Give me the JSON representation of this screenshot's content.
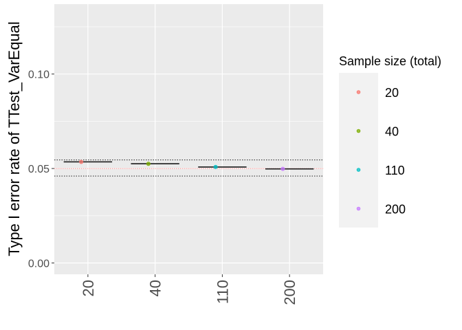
{
  "chart_data": {
    "type": "scatter",
    "title": "",
    "xlabel": "",
    "ylabel": "Type I error rate of TTest_VarEqual",
    "categories": [
      "20",
      "40",
      "110",
      "200"
    ],
    "y_ticks": [
      "0.00",
      "0.05",
      "0.10"
    ],
    "ylim": [
      -0.006,
      0.137
    ],
    "grid": true,
    "reference_lines": {
      "nominal": 0.05,
      "lower": 0.046,
      "upper": 0.0545
    },
    "series": [
      {
        "name": "20",
        "x": "20",
        "y": 0.0535,
        "color": "#F8766D"
      },
      {
        "name": "40",
        "x": "40",
        "y": 0.0525,
        "color": "#7CAE00"
      },
      {
        "name": "110",
        "x": "110",
        "y": 0.0508,
        "color": "#00BFC4"
      },
      {
        "name": "200",
        "x": "200",
        "y": 0.0498,
        "color": "#C77CFF"
      }
    ],
    "legend": {
      "title": "Sample size (total)",
      "placement": "right",
      "entries": [
        "20",
        "40",
        "110",
        "200"
      ]
    }
  }
}
